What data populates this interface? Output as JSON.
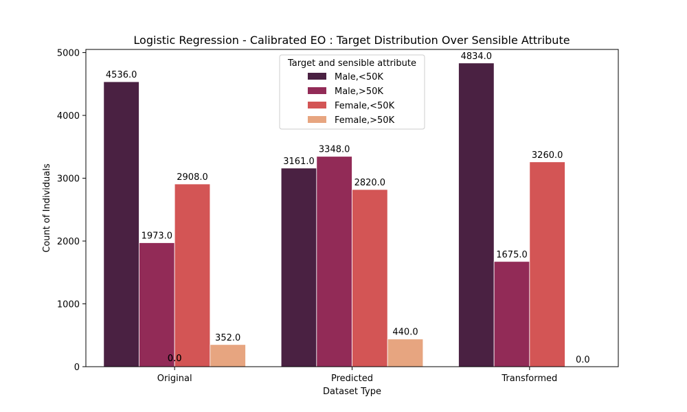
{
  "chart_data": {
    "type": "bar",
    "title": "Logistic Regression - Calibrated EO : Target Distribution Over Sensible Attribute",
    "xlabel": "Dataset Type",
    "ylabel": "Count of Individuals",
    "ylim": [
      0,
      5050
    ],
    "yticks": [
      0,
      1000,
      2000,
      3000,
      4000,
      5000
    ],
    "categories": [
      "Original",
      "Predicted",
      "Transformed"
    ],
    "legend": {
      "title": "Target and sensible attribute",
      "placement": "top-center"
    },
    "series": [
      {
        "name": "Male,<50K",
        "color": "#4a2142",
        "values": [
          4536.0,
          3161.0,
          4834.0
        ],
        "labels": [
          "4536.0",
          "3161.0",
          "4834.0"
        ]
      },
      {
        "name": "Male,>50K",
        "color": "#922b57",
        "values": [
          1973.0,
          3348.0,
          1675.0
        ],
        "labels": [
          "1973.0",
          "3348.0",
          "1675.0"
        ]
      },
      {
        "name": "Female,<50K",
        "color": "#d35555",
        "values": [
          2908.0,
          2820.0,
          3260.0
        ],
        "labels": [
          "2908.0",
          "2820.0",
          "3260.0"
        ]
      },
      {
        "name": "Female,>50K",
        "color": "#e7a580",
        "values": [
          352.0,
          440.0,
          0.0
        ],
        "labels": [
          "352.0",
          "440.0",
          "0.0"
        ]
      }
    ],
    "extra_annotations": [
      {
        "category": "Original",
        "text": "0.0"
      },
      {
        "category": "Original",
        "text": "0.0"
      }
    ]
  }
}
